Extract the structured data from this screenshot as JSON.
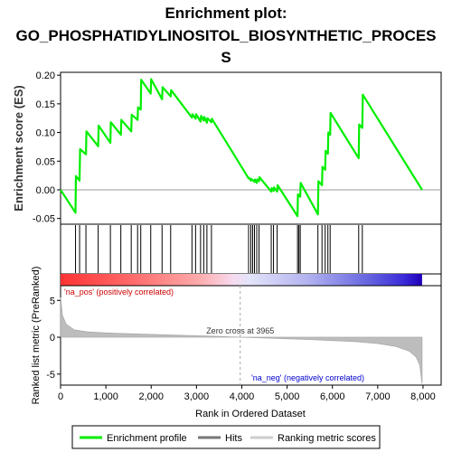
{
  "chart_data": {
    "type": "line",
    "title_line1": "Enrichment plot:",
    "title_line2": "GO_PHOSPHATIDYLINOSITOL_BIOSYNTHETIC_PROCES",
    "title_line3": "S",
    "es_ylabel": "Enrichment score (ES)",
    "metric_ylabel": "Ranked list metric (PreRanked)",
    "xlabel": "Rank in Ordered Dataset",
    "xlim": [
      0,
      8400
    ],
    "es_ylim": [
      -0.06,
      0.205
    ],
    "metric_ylim": [
      -6.5,
      7
    ],
    "x_ticks": [
      0,
      1000,
      2000,
      3000,
      4000,
      5000,
      6000,
      7000,
      8000
    ],
    "x_tick_labels": [
      "0",
      "1,000",
      "2,000",
      "3,000",
      "4,000",
      "5,000",
      "6,000",
      "7,000",
      "8,000"
    ],
    "es_ticks": [
      -0.05,
      0.0,
      0.05,
      0.1,
      0.15,
      0.2
    ],
    "es_tick_labels": [
      "-0.05",
      "0.00",
      "0.05",
      "0.10",
      "0.15",
      "0.20"
    ],
    "metric_ticks": [
      -5,
      0,
      5
    ],
    "metric_tick_labels": [
      "-5",
      "0",
      "5"
    ],
    "enrichment_profile": {
      "name": "Enrichment profile",
      "color": "#00ee00",
      "x": [
        0,
        330,
        340,
        420,
        430,
        560,
        570,
        830,
        840,
        1100,
        1110,
        1330,
        1340,
        1560,
        1570,
        1700,
        1710,
        1770,
        1780,
        1990,
        2000,
        2240,
        2250,
        2430,
        2440,
        2900,
        2910,
        2980,
        2990,
        3090,
        3100,
        3160,
        3170,
        3230,
        3240,
        3330,
        3340,
        4150,
        4160,
        4200,
        4210,
        4280,
        4290,
        4330,
        4340,
        4380,
        4390,
        4650,
        4660,
        4700,
        4710,
        4780,
        4790,
        5230,
        5240,
        5290,
        5300,
        5680,
        5690,
        5770,
        5780,
        5840,
        5850,
        5900,
        5910,
        5950,
        5960,
        6580,
        6590,
        6660,
        6670,
        7980
      ],
      "y": [
        0.0,
        -0.04,
        0.024,
        0.016,
        0.071,
        0.062,
        0.102,
        0.076,
        0.112,
        0.082,
        0.118,
        0.096,
        0.122,
        0.102,
        0.131,
        0.122,
        0.144,
        0.14,
        0.192,
        0.168,
        0.193,
        0.158,
        0.179,
        0.163,
        0.174,
        0.126,
        0.132,
        0.124,
        0.132,
        0.119,
        0.129,
        0.121,
        0.127,
        0.117,
        0.125,
        0.118,
        0.124,
        0.02,
        0.021,
        0.016,
        0.019,
        0.014,
        0.018,
        0.012,
        0.018,
        0.015,
        0.022,
        -0.003,
        0.003,
        -0.002,
        0.004,
        -0.003,
        0.008,
        -0.046,
        -0.008,
        -0.012,
        0.012,
        -0.043,
        0.015,
        0.008,
        0.04,
        0.035,
        0.068,
        0.063,
        0.1,
        0.096,
        0.134,
        0.055,
        0.114,
        0.108,
        0.166,
        0.0
      ]
    },
    "hits_name": "Hits",
    "hits": [
      330,
      420,
      560,
      830,
      1100,
      1330,
      1560,
      1700,
      1770,
      1990,
      2240,
      2430,
      2900,
      2980,
      3090,
      3160,
      3230,
      3330,
      4150,
      4200,
      4240,
      4280,
      4330,
      4380,
      4650,
      4700,
      4780,
      5230,
      5260,
      5290,
      5680,
      5770,
      5840,
      5900,
      5950,
      6580,
      6660
    ],
    "metric_name": "Ranking metric scores",
    "metric_curve": {
      "x": [
        0,
        40,
        120,
        300,
        600,
        1000,
        1500,
        2000,
        2500,
        3000,
        3500,
        3965,
        4500,
        5000,
        5500,
        6000,
        6500,
        7000,
        7400,
        7700,
        7850,
        7930,
        7980
      ],
      "y": [
        5.4,
        3.0,
        1.8,
        1.0,
        0.72,
        0.58,
        0.47,
        0.38,
        0.29,
        0.2,
        0.1,
        0.0,
        -0.1,
        -0.2,
        -0.32,
        -0.45,
        -0.6,
        -0.85,
        -1.25,
        -1.9,
        -2.7,
        -3.8,
        -6.3
      ]
    },
    "zero_cross_label": "Zero cross at 3965",
    "zero_cross": 3965,
    "pos_label": "'na_pos' (positively correlated)",
    "neg_label": "'na_neg' (negatively correlated)",
    "legend_placement": "bottom",
    "legend": [
      {
        "label": "Enrichment profile",
        "color": "#00ee00"
      },
      {
        "label": "Hits",
        "color": "#777777"
      },
      {
        "label": "Ranking metric scores",
        "color": "#cccccc"
      }
    ]
  }
}
